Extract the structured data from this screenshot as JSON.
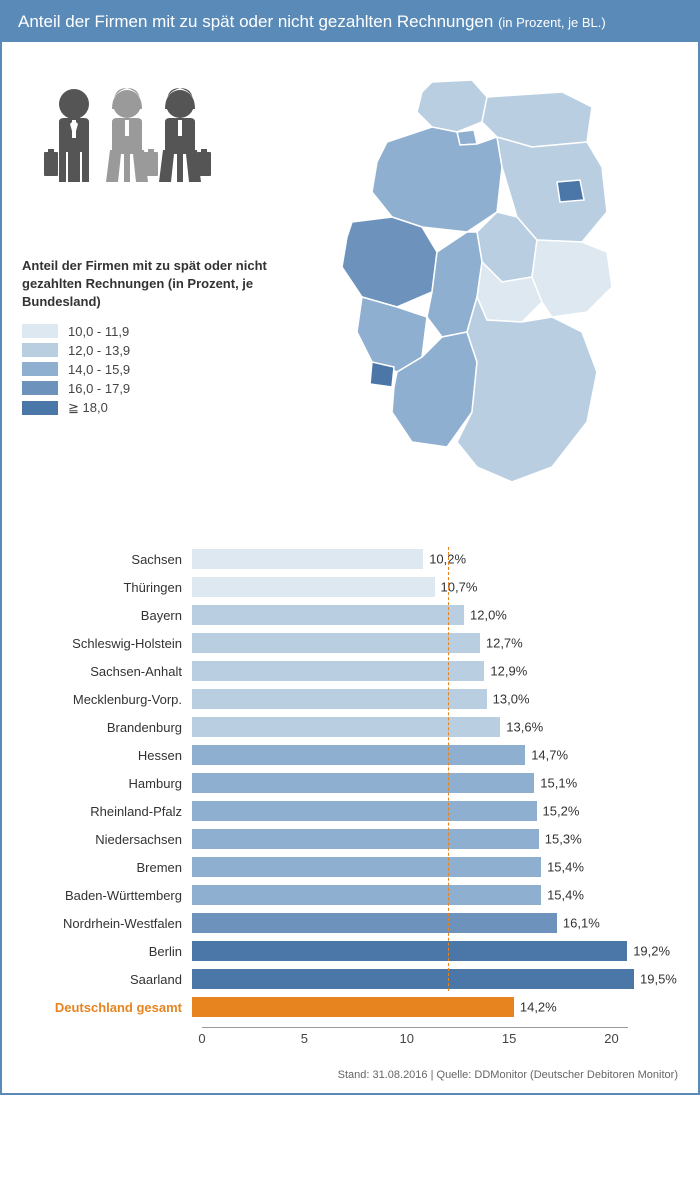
{
  "header": {
    "title": "Anteil der Firmen mit zu spät oder nicht gezahlten Rechnungen",
    "subtitle": "(in Prozent, je BL.)"
  },
  "legend": {
    "title": "Anteil der Firmen mit zu spät oder nicht gezahlten Rechnungen (in Prozent, je Bundesland)",
    "items": [
      {
        "label": "10,0 - 11,9",
        "color": "#dde8f0"
      },
      {
        "label": "12,0 - 13,9",
        "color": "#b9cfe1"
      },
      {
        "label": "14,0 - 15,9",
        "color": "#8eafcf"
      },
      {
        "label": "16,0 - 17,9",
        "color": "#6d93bd"
      },
      {
        "label": "≧ 18,0",
        "color": "#4b77a8"
      }
    ]
  },
  "chart": {
    "xmax": 21,
    "xticks": [
      0,
      5,
      10,
      15,
      20
    ],
    "reference_value": 12.0,
    "rows": [
      {
        "label": "Sachsen",
        "value": 10.2,
        "display": "10,2%",
        "color": "#dde8f0"
      },
      {
        "label": "Thüringen",
        "value": 10.7,
        "display": "10,7%",
        "color": "#dde8f0"
      },
      {
        "label": "Bayern",
        "value": 12.0,
        "display": "12,0%",
        "color": "#b9cfe1"
      },
      {
        "label": "Schleswig-Holstein",
        "value": 12.7,
        "display": "12,7%",
        "color": "#b9cfe1"
      },
      {
        "label": "Sachsen-Anhalt",
        "value": 12.9,
        "display": "12,9%",
        "color": "#b9cfe1"
      },
      {
        "label": "Mecklenburg-Vorp.",
        "value": 13.0,
        "display": "13,0%",
        "color": "#b9cfe1"
      },
      {
        "label": "Brandenburg",
        "value": 13.6,
        "display": "13,6%",
        "color": "#b9cfe1"
      },
      {
        "label": "Hessen",
        "value": 14.7,
        "display": "14,7%",
        "color": "#8eafcf"
      },
      {
        "label": "Hamburg",
        "value": 15.1,
        "display": "15,1%",
        "color": "#8eafcf"
      },
      {
        "label": "Rheinland-Pfalz",
        "value": 15.2,
        "display": "15,2%",
        "color": "#8eafcf"
      },
      {
        "label": "Niedersachsen",
        "value": 15.3,
        "display": "15,3%",
        "color": "#8eafcf"
      },
      {
        "label": "Bremen",
        "value": 15.4,
        "display": "15,4%",
        "color": "#8eafcf"
      },
      {
        "label": "Baden-Württemberg",
        "value": 15.4,
        "display": "15,4%",
        "color": "#8eafcf"
      },
      {
        "label": "Nordrhein-Westfalen",
        "value": 16.1,
        "display": "16,1%",
        "color": "#6d93bd"
      },
      {
        "label": "Berlin",
        "value": 19.2,
        "display": "19,2%",
        "color": "#4b77a8"
      },
      {
        "label": "Saarland",
        "value": 19.5,
        "display": "19,5%",
        "color": "#4b77a8"
      }
    ],
    "total_row": {
      "label": "Deutschland gesamt",
      "value": 14.2,
      "display": "14,2%",
      "color": "#e8841f"
    }
  },
  "footer": {
    "text": "Stand: 31.08.2016 | Quelle: DDMonitor (Deutscher Debitoren Monitor)"
  },
  "colors": {
    "header_bg": "#5a8bb8",
    "people_dark": "#555555",
    "people_light": "#9a9a9a",
    "accent": "#e8841f"
  }
}
